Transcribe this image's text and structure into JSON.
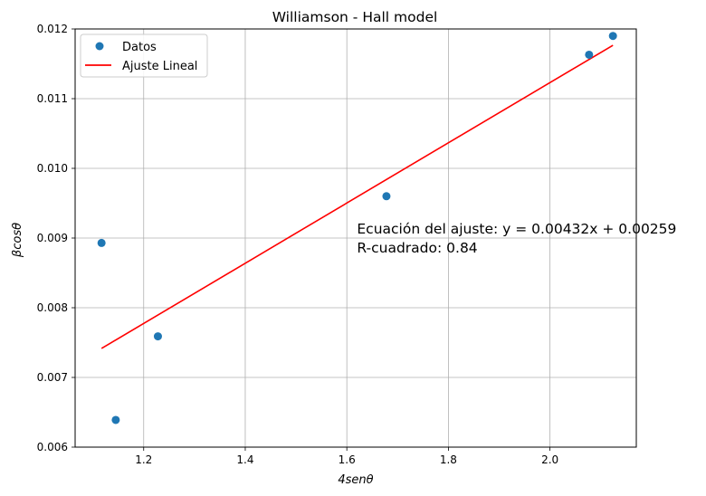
{
  "chart_data": {
    "type": "scatter",
    "title": "Williamson - Hall model",
    "xlabel": "4senθ",
    "ylabel": "βcosθ",
    "xlim": [
      1.065,
      2.17
    ],
    "ylim": [
      0.006,
      0.012
    ],
    "xticks": [
      1.2,
      1.4,
      1.6,
      1.8,
      2.0
    ],
    "xtick_labels": [
      "1.2",
      "1.4",
      "1.6",
      "1.8",
      "2.0"
    ],
    "yticks": [
      0.006,
      0.007,
      0.008,
      0.009,
      0.01,
      0.011,
      0.012
    ],
    "ytick_labels": [
      "0.006",
      "0.007",
      "0.008",
      "0.009",
      "0.010",
      "0.011",
      "0.012"
    ],
    "grid": true,
    "legend_position": "top-left",
    "series": [
      {
        "name": "Datos",
        "kind": "scatter",
        "color": "#1f77b4",
        "x": [
          1.117,
          1.145,
          1.228,
          1.678,
          2.077,
          2.124
        ],
        "y": [
          0.00893,
          0.00639,
          0.00759,
          0.0096,
          0.01163,
          0.0119
        ]
      },
      {
        "name": "Ajuste Lineal",
        "kind": "line",
        "color": "#ff0000",
        "x": [
          1.117,
          2.124
        ],
        "y": [
          0.007416,
          0.011766
        ]
      }
    ],
    "annotations": [
      "Ecuación del ajuste: y = 0.00432x + 0.00259",
      "R-cuadrado: 0.84"
    ]
  }
}
